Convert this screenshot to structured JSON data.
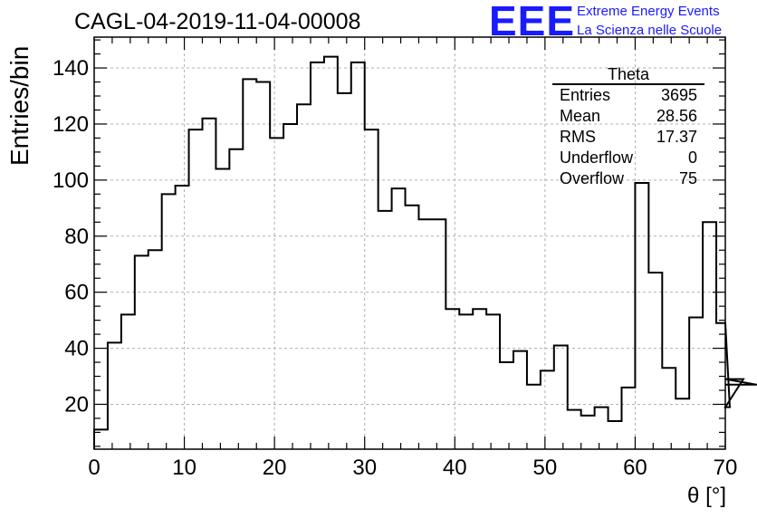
{
  "header": {
    "run_title": "CAGL-04-2019-11-04-00008",
    "logo_text": "EEE",
    "project_line1": "Extreme Energy Events",
    "project_line2": "La Scienza nelle Scuole"
  },
  "stats_box": {
    "title": "Theta",
    "rows": [
      {
        "label": "Entries",
        "value": "3695"
      },
      {
        "label": "Mean",
        "value": "28.56"
      },
      {
        "label": "RMS",
        "value": "17.37"
      },
      {
        "label": "Underflow",
        "value": "0"
      },
      {
        "label": "Overflow",
        "value": "75"
      }
    ]
  },
  "colors": {
    "line": "#000000",
    "grid": "#b0b0b0",
    "logo": "#1a1aff"
  },
  "chart_data": {
    "type": "histogram",
    "xlabel": "θ [°]",
    "ylabel": "Entries/bin",
    "xlim": [
      0,
      70
    ],
    "ylim": [
      4,
      151
    ],
    "x_ticks": [
      0,
      10,
      20,
      30,
      40,
      50,
      60,
      70
    ],
    "y_ticks": [
      20,
      40,
      60,
      80,
      100,
      120,
      140
    ],
    "grid": true,
    "bin_edges_start": 0,
    "bin_width": 1.5,
    "values": [
      11,
      42,
      52,
      73,
      75,
      95,
      98,
      118,
      122,
      104,
      111,
      136,
      135,
      115,
      120,
      127,
      142,
      144,
      131,
      142,
      118,
      89,
      97,
      91,
      86,
      86,
      54,
      52,
      54,
      52,
      35,
      39,
      27,
      32,
      41,
      18,
      16,
      19,
      14,
      26,
      99,
      67,
      33,
      22,
      51,
      85,
      49,
      19,
      29,
      27
    ]
  }
}
